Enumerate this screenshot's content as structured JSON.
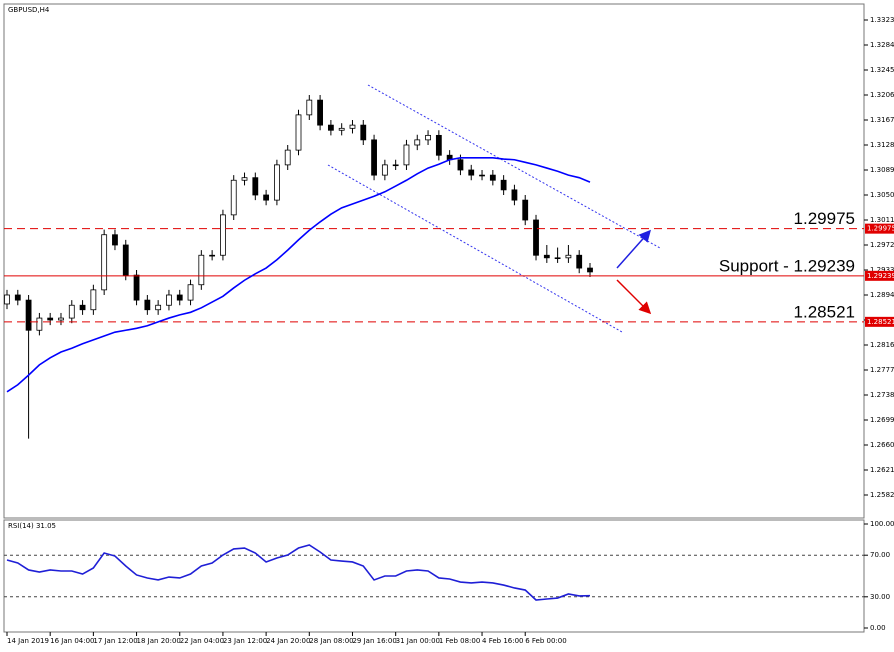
{
  "chart_data": [
    {
      "type": "candlestick",
      "title": "GBPUSD,H4",
      "color": "#000000",
      "up_fill": "#ffffff",
      "xlim": [
        0,
        54
      ],
      "ylim": [
        1.25461,
        1.33464
      ],
      "yticks": [
        {
          "value": 1.3323,
          "label": "1.33230"
        },
        {
          "value": 1.3284,
          "label": "1.32840"
        },
        {
          "value": 1.3245,
          "label": "1.32450"
        },
        {
          "value": 1.3206,
          "label": "1.32060"
        },
        {
          "value": 1.3167,
          "label": "1.31670"
        },
        {
          "value": 1.3128,
          "label": "1.31280"
        },
        {
          "value": 1.3089,
          "label": "1.30890"
        },
        {
          "value": 1.305,
          "label": "1.30500"
        },
        {
          "value": 1.3011,
          "label": "1.30110"
        },
        {
          "value": 1.2972,
          "label": "1.29720"
        },
        {
          "value": 1.2933,
          "label": "1.29330"
        },
        {
          "value": 1.2894,
          "label": "1.28940"
        },
        {
          "value": 1.2855,
          "label": "1.28550"
        },
        {
          "value": 1.2816,
          "label": "1.28160"
        },
        {
          "value": 1.2777,
          "label": "1.27770"
        },
        {
          "value": 1.2738,
          "label": "1.27380"
        },
        {
          "value": 1.2699,
          "label": "1.26990"
        },
        {
          "value": 1.266,
          "label": "1.26600"
        },
        {
          "value": 1.2621,
          "label": "1.26210"
        },
        {
          "value": 1.2582,
          "label": "1.25820"
        }
      ],
      "open": [
        1.288,
        1.2894,
        1.2886,
        1.2839,
        1.2858,
        1.2855,
        1.2858,
        1.2878,
        1.2871,
        1.2902,
        1.2988,
        1.2972,
        1.2925,
        1.2886,
        1.2871,
        1.2878,
        1.2894,
        1.2886,
        1.291,
        1.2956,
        1.2956,
        1.3019,
        1.3073,
        1.3077,
        1.305,
        1.3042,
        1.3097,
        1.312,
        1.3175,
        1.3198,
        1.3159,
        1.3151,
        1.3154,
        1.3159,
        1.3136,
        1.3081,
        1.3097,
        1.3097,
        1.3128,
        1.3136,
        1.3143,
        1.3112,
        1.3105,
        1.3089,
        1.3081,
        1.3081,
        1.3073,
        1.3058,
        1.3042,
        1.3011,
        1.2956,
        1.2952,
        1.2952,
        1.2956,
        1.2936
      ],
      "high": [
        1.2902,
        1.2902,
        1.2894,
        1.2866,
        1.2866,
        1.2866,
        1.2886,
        1.2886,
        1.291,
        1.2996,
        1.2996,
        1.298,
        1.2933,
        1.2894,
        1.2886,
        1.2902,
        1.2902,
        1.2918,
        1.2964,
        1.2964,
        1.3027,
        1.3081,
        1.3085,
        1.3085,
        1.3058,
        1.3105,
        1.3128,
        1.3183,
        1.3206,
        1.3206,
        1.3167,
        1.3162,
        1.3167,
        1.3167,
        1.3144,
        1.3105,
        1.3105,
        1.3136,
        1.3144,
        1.3151,
        1.3151,
        1.312,
        1.3113,
        1.3097,
        1.3089,
        1.3089,
        1.3081,
        1.3066,
        1.305,
        1.3019,
        1.2972,
        1.2968,
        1.2972,
        1.2964,
        1.2944
      ],
      "low": [
        1.2872,
        1.2878,
        1.267,
        1.2831,
        1.2847,
        1.2847,
        1.285,
        1.2863,
        1.2863,
        1.2894,
        1.2964,
        1.2917,
        1.2878,
        1.2863,
        1.2863,
        1.287,
        1.2878,
        1.2878,
        1.2902,
        1.2948,
        1.2948,
        1.3011,
        1.3065,
        1.3042,
        1.3034,
        1.3034,
        1.3089,
        1.3112,
        1.3167,
        1.3151,
        1.3143,
        1.3143,
        1.3146,
        1.3128,
        1.3073,
        1.3073,
        1.3089,
        1.3089,
        1.312,
        1.3128,
        1.3104,
        1.3097,
        1.3081,
        1.3073,
        1.3073,
        1.3065,
        1.305,
        1.3034,
        1.3003,
        1.2948,
        1.2944,
        1.2944,
        1.2944,
        1.2928,
        1.2922
      ],
      "close": [
        1.2894,
        1.2886,
        1.2839,
        1.2858,
        1.2855,
        1.2858,
        1.2878,
        1.2871,
        1.2902,
        1.2988,
        1.2972,
        1.2925,
        1.2886,
        1.2871,
        1.2878,
        1.2894,
        1.2886,
        1.291,
        1.2956,
        1.2956,
        1.3019,
        1.3073,
        1.3077,
        1.305,
        1.3042,
        1.3097,
        1.312,
        1.3175,
        1.3198,
        1.3159,
        1.3151,
        1.3154,
        1.3159,
        1.3136,
        1.3081,
        1.3097,
        1.3097,
        1.3128,
        1.3136,
        1.3143,
        1.3112,
        1.3105,
        1.3089,
        1.3081,
        1.3081,
        1.3073,
        1.3058,
        1.3042,
        1.3011,
        1.2956,
        1.2952,
        1.2952,
        1.2956,
        1.2936,
        1.293
      ],
      "series": [
        {
          "color": "#0000ff",
          "values": [
            1.2743,
            1.2754,
            1.2769,
            1.2785,
            1.2796,
            1.2805,
            1.2811,
            1.2818,
            1.2824,
            1.283,
            1.2836,
            1.2839,
            1.2842,
            1.2846,
            1.2852,
            1.2858,
            1.2863,
            1.2867,
            1.2874,
            1.2883,
            1.2892,
            1.2905,
            1.2917,
            1.2927,
            1.2936,
            1.2949,
            1.2964,
            1.298,
            1.2995,
            1.3008,
            1.302,
            1.303,
            1.3036,
            1.3042,
            1.3048,
            1.3055,
            1.3064,
            1.3073,
            1.3083,
            1.3092,
            1.3098,
            1.3105,
            1.3108,
            1.3108,
            1.3108,
            1.3108,
            1.3106,
            1.3105,
            1.3101,
            1.3097,
            1.3092,
            1.3087,
            1.3081,
            1.3077,
            1.307
          ]
        }
      ],
      "levels": [
        {
          "label": "1.29975",
          "tag": "1.29975",
          "value": 1.29975,
          "style": "dashed"
        },
        {
          "label": "Support - 1.29239",
          "tag": "1.29239",
          "value": 1.29239,
          "style": "solid"
        },
        {
          "label": "1.28521",
          "tag": "1.28521",
          "value": 1.28521,
          "style": "dashed"
        }
      ],
      "level_color": "#e00000"
    },
    {
      "type": "line",
      "title": "RSI(14) 31.05",
      "xlim": [
        0,
        54
      ],
      "ylim": [
        0,
        100
      ],
      "yticks": [
        {
          "value": 100,
          "label": "100.00"
        },
        {
          "value": 70,
          "label": "70.00"
        },
        {
          "value": 30,
          "label": "30.00"
        },
        {
          "value": 0,
          "label": "0.00"
        }
      ],
      "levels": [
        70,
        30
      ],
      "xticks": [
        {
          "value": 0,
          "label": "14 Jan 2019"
        },
        {
          "value": 4,
          "label": "16 Jan 04:00"
        },
        {
          "value": 8,
          "label": "17 Jan 12:00"
        },
        {
          "value": 12,
          "label": "18 Jan 20:00"
        },
        {
          "value": 16,
          "label": "22 Jan 04:00"
        },
        {
          "value": 20,
          "label": "23 Jan 12:00"
        },
        {
          "value": 24,
          "label": "24 Jan 20:00"
        },
        {
          "value": 28,
          "label": "28 Jan 08:00"
        },
        {
          "value": 32,
          "label": "29 Jan 16:00"
        },
        {
          "value": 36,
          "label": "31 Jan 00:00"
        },
        {
          "value": 40,
          "label": "1 Feb 08:00"
        },
        {
          "value": 44,
          "label": "4 Feb 16:00"
        },
        {
          "value": 48,
          "label": "6 Feb 00:00"
        }
      ],
      "series": [
        {
          "color": "#1f1fd6",
          "values": [
            65.4,
            62.5,
            55.8,
            53.8,
            55.8,
            54.8,
            54.8,
            51.9,
            57.7,
            72.1,
            69.2,
            59.6,
            51.0,
            48.1,
            46.2,
            49.0,
            48.1,
            51.9,
            59.6,
            62.5,
            70.2,
            76.0,
            76.9,
            72.1,
            63.5,
            67.3,
            70.2,
            76.9,
            79.8,
            73.1,
            65.4,
            64.4,
            63.5,
            59.6,
            46.2,
            50.0,
            50.0,
            54.8,
            55.8,
            54.8,
            48.1,
            47.1,
            44.2,
            43.3,
            44.2,
            43.3,
            41.3,
            38.5,
            36.5,
            26.9,
            27.9,
            28.8,
            32.7,
            30.8,
            31.05
          ]
        }
      ]
    }
  ]
}
